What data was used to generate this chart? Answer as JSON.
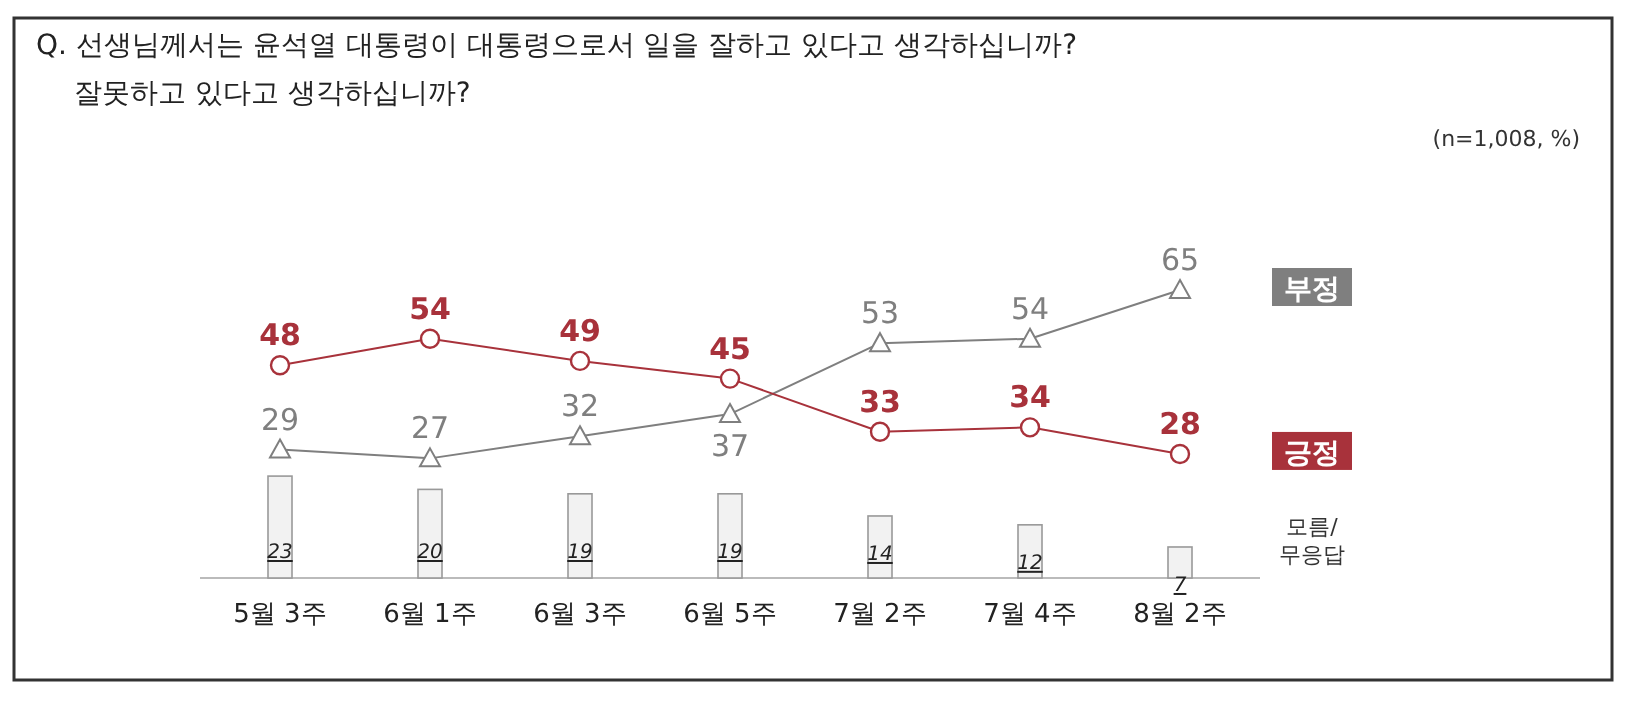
{
  "chart_data": {
    "type": "line",
    "title": "Q. 선생님께서는 윤석열 대통령이 대통령으로서 일을 잘하고 있다고 생각하십니까?",
    "subtitle": "잘못하고 있다고 생각하십니까?",
    "annotations": [
      "(n=1,008,  %)"
    ],
    "categories": [
      "5월 3주",
      "6월 1주",
      "6월 3주",
      "6월 5주",
      "7월 2주",
      "7월 4주",
      "8월 2주"
    ],
    "series": [
      {
        "name": "부정",
        "marker": "triangle",
        "color": "#7f7f7f",
        "values": [
          29,
          27,
          32,
          37,
          53,
          54,
          65
        ]
      },
      {
        "name": "긍정",
        "marker": "circle",
        "color": "#a8323b",
        "values": [
          48,
          54,
          49,
          45,
          33,
          34,
          28
        ]
      },
      {
        "name": "모름/무응답",
        "type": "bar",
        "color": "#f2f2f2",
        "values": [
          23,
          20,
          19,
          19,
          14,
          12,
          7
        ]
      }
    ],
    "data_labels": true
  }
}
